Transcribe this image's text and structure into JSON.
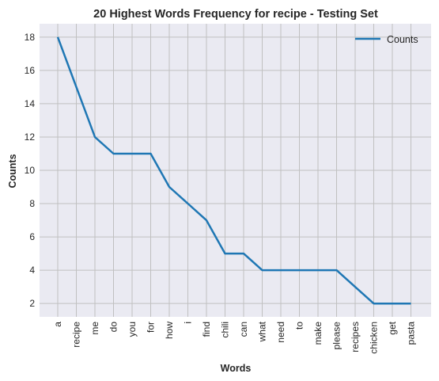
{
  "chart_data": {
    "type": "line",
    "title": "20 Highest Words Frequency for recipe - Testing Set",
    "xlabel": "Words",
    "ylabel": "Counts",
    "categories": [
      "a",
      "recipe",
      "me",
      "do",
      "you",
      "for",
      "how",
      "i",
      "find",
      "chili",
      "can",
      "what",
      "need",
      "to",
      "make",
      "please",
      "recipes",
      "chicken",
      "get",
      "pasta"
    ],
    "series": [
      {
        "name": "Counts",
        "values": [
          18,
          15,
          12,
          11,
          11,
          11,
          9,
          8,
          7,
          5,
          5,
          4,
          4,
          4,
          4,
          4,
          3,
          2,
          2,
          2
        ]
      }
    ],
    "yticks": [
      2,
      4,
      6,
      8,
      10,
      12,
      14,
      16,
      18
    ],
    "ylim": [
      1.2,
      18.8
    ],
    "grid": true,
    "legend_position": "top-right",
    "colors": {
      "line": "#1f77b4",
      "plot_bg": "#eaeaf2",
      "grid": "#c0c0c0"
    }
  }
}
